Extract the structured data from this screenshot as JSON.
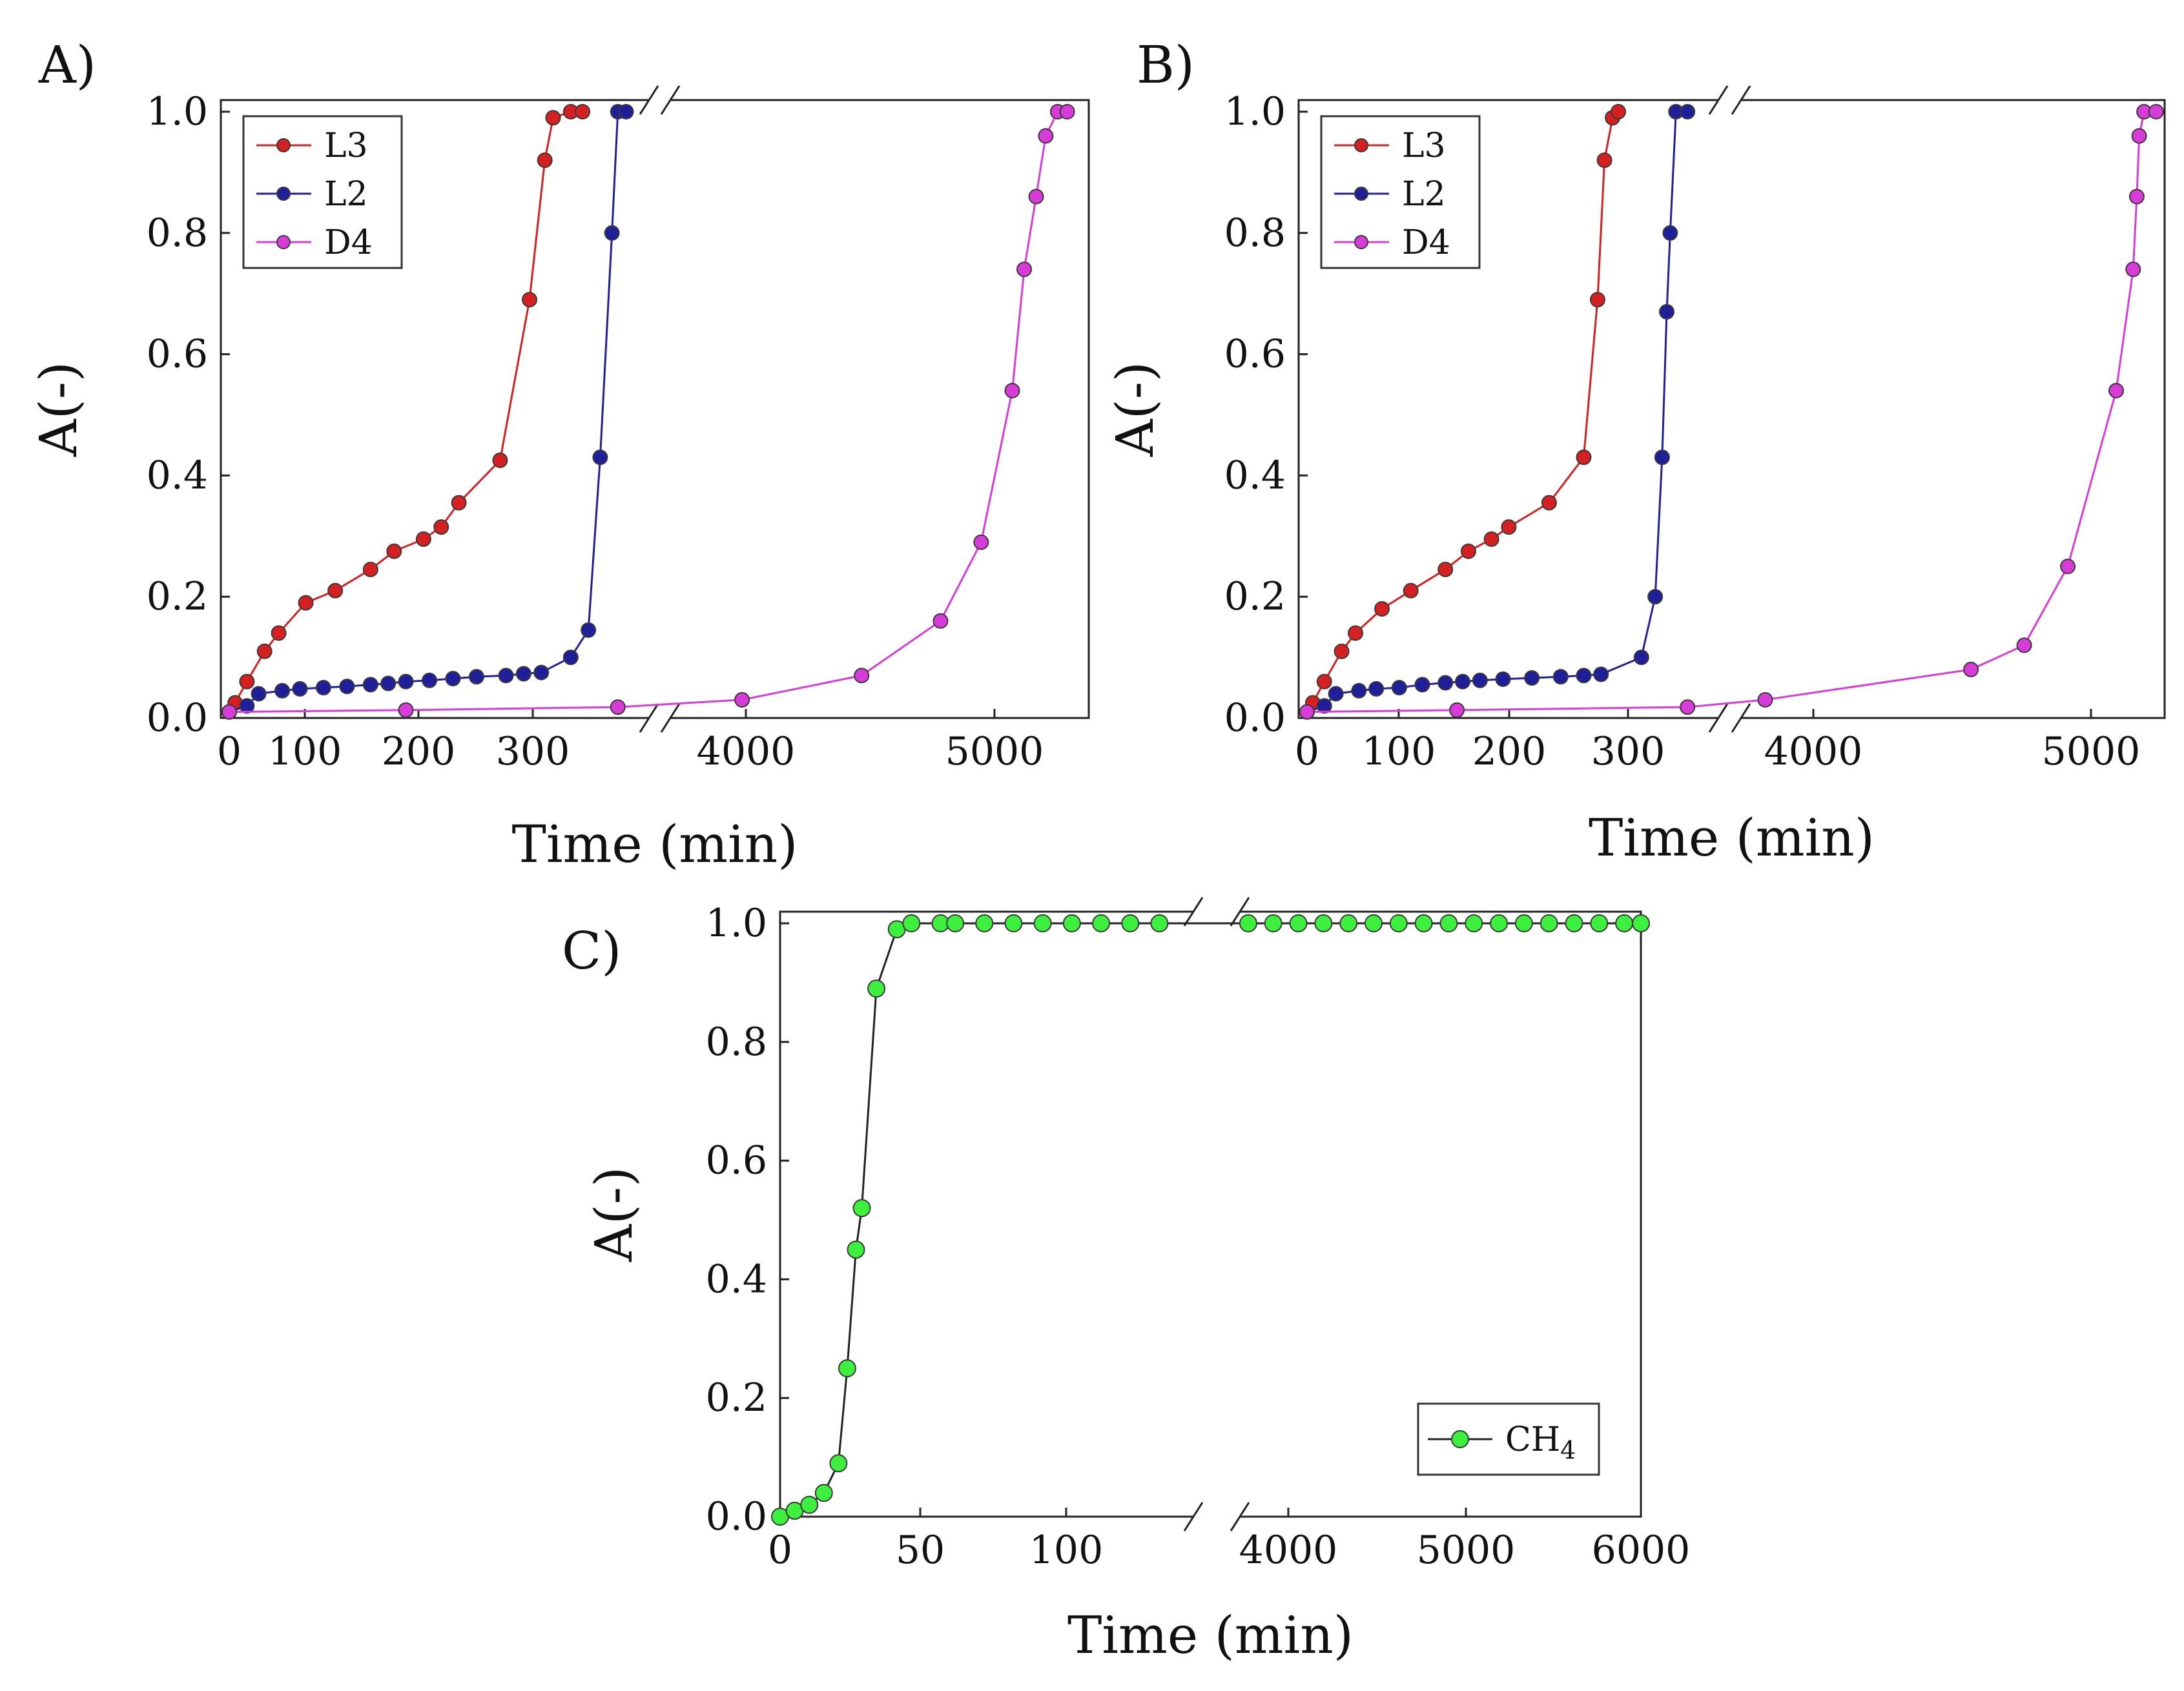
{
  "figure": {
    "panels": [
      "A)",
      "B)",
      "C)"
    ]
  },
  "colors": {
    "L3": "#d42020",
    "L2": "#1f1f9a",
    "D4": "#d83cd8",
    "CH4": "#3ef03e",
    "marker_edge": "#3a3a3a"
  },
  "chart_data": [
    {
      "panel": "A)",
      "type": "line",
      "xlabel": "Time (min)",
      "ylabel": "A(-)",
      "ylim": [
        0,
        1.0
      ],
      "yticks": [
        "0.0",
        "0.2",
        "0.4",
        "0.6",
        "0.8",
        "1.0"
      ],
      "xbreak": {
        "left_range": [
          0,
          340
        ],
        "right_range": [
          3700,
          5450
        ]
      },
      "xticks_left": [
        "0",
        "100",
        "200",
        "300"
      ],
      "xticks_right": [
        "4000",
        "5000"
      ],
      "legend": {
        "location": "top-left",
        "entries": [
          "L3",
          "L2",
          "D4"
        ]
      },
      "series": [
        {
          "name": "L3",
          "x": [
            0,
            5,
            15,
            30,
            42,
            65,
            90,
            120,
            140,
            165,
            180,
            195,
            230,
            255,
            268,
            275,
            290,
            300
          ],
          "y": [
            0.01,
            0.025,
            0.06,
            0.11,
            0.14,
            0.19,
            0.21,
            0.245,
            0.275,
            0.295,
            0.315,
            0.355,
            0.425,
            0.69,
            0.92,
            0.99,
            1.0,
            1.0
          ]
        },
        {
          "name": "L2",
          "x": [
            0,
            15,
            25,
            45,
            60,
            80,
            100,
            120,
            135,
            150,
            170,
            190,
            210,
            235,
            250,
            265,
            290,
            305,
            315,
            325,
            330,
            337
          ],
          "y": [
            0.01,
            0.02,
            0.04,
            0.045,
            0.048,
            0.05,
            0.052,
            0.055,
            0.057,
            0.06,
            0.062,
            0.065,
            0.068,
            0.07,
            0.073,
            0.075,
            0.1,
            0.145,
            0.43,
            0.8,
            1.0,
            1.0
          ]
        },
        {
          "name": "D4",
          "x": [
            0,
            150,
            330,
            4000,
            4500,
            4830,
            5000,
            5130,
            5180,
            5230,
            5270,
            5320,
            5360
          ],
          "y": [
            0.01,
            0.013,
            0.018,
            0.03,
            0.07,
            0.16,
            0.29,
            0.54,
            0.74,
            0.86,
            0.96,
            1.0,
            1.0
          ]
        }
      ]
    },
    {
      "panel": "B)",
      "type": "line",
      "xlabel": "Time (min)",
      "ylabel": "A(-)",
      "ylim": [
        0,
        1.0
      ],
      "yticks": [
        "0.0",
        "0.2",
        "0.4",
        "0.6",
        "0.8",
        "1.0"
      ],
      "xbreak": {
        "left_range": [
          0,
          340
        ],
        "right_range": [
          3550,
          5300
        ]
      },
      "xticks_left": [
        "0",
        "100",
        "200",
        "300"
      ],
      "xticks_right": [
        "4000",
        "5000"
      ],
      "legend": {
        "location": "top-left",
        "entries": [
          "L3",
          "L2",
          "D4"
        ]
      },
      "series": [
        {
          "name": "L3",
          "x": [
            0,
            5,
            15,
            30,
            42,
            65,
            90,
            120,
            140,
            160,
            175,
            210,
            240,
            252,
            258,
            265,
            270
          ],
          "y": [
            0.01,
            0.025,
            0.06,
            0.11,
            0.14,
            0.18,
            0.21,
            0.245,
            0.275,
            0.295,
            0.315,
            0.355,
            0.43,
            0.69,
            0.92,
            0.99,
            1.0
          ]
        },
        {
          "name": "L2",
          "x": [
            0,
            15,
            25,
            45,
            60,
            80,
            100,
            120,
            135,
            150,
            170,
            195,
            220,
            240,
            255,
            290,
            302,
            308,
            312,
            315,
            320,
            330
          ],
          "y": [
            0.01,
            0.02,
            0.04,
            0.045,
            0.048,
            0.05,
            0.055,
            0.058,
            0.06,
            0.062,
            0.064,
            0.066,
            0.068,
            0.07,
            0.072,
            0.1,
            0.2,
            0.43,
            0.67,
            0.8,
            1.0,
            1.0
          ]
        },
        {
          "name": "D4",
          "x": [
            0,
            130,
            330,
            3650,
            4500,
            4720,
            4900,
            5100,
            5170,
            5185,
            5195,
            5215,
            5265
          ],
          "y": [
            0.01,
            0.013,
            0.018,
            0.03,
            0.08,
            0.12,
            0.25,
            0.54,
            0.74,
            0.86,
            0.96,
            1.0,
            1.0
          ]
        }
      ]
    },
    {
      "panel": "C)",
      "type": "line",
      "xlabel": "Time (min)",
      "ylabel": "A(-)",
      "ylim": [
        0,
        1.0
      ],
      "yticks": [
        "0.0",
        "0.2",
        "0.4",
        "0.6",
        "0.8",
        "1.0"
      ],
      "xbreak": {
        "left_range": [
          0,
          135
        ],
        "right_range": [
          3600,
          6000
        ]
      },
      "xticks_left": [
        "0",
        "50",
        "100"
      ],
      "xticks_right": [
        "4000",
        "5000",
        "6000"
      ],
      "legend": {
        "location": "bottom-right",
        "entries": [
          "CH4"
        ]
      },
      "series": [
        {
          "name": "CH4",
          "x": [
            0,
            5,
            10,
            15,
            20,
            23,
            26,
            28,
            33,
            40,
            45,
            55,
            60,
            70,
            80,
            90,
            100,
            110,
            120,
            130,
            3650,
            3800,
            3950,
            4100,
            4250,
            4400,
            4550,
            4700,
            4850,
            5000,
            5150,
            5300,
            5450,
            5600,
            5750,
            5900,
            6000
          ],
          "y": [
            0,
            0.01,
            0.02,
            0.04,
            0.09,
            0.25,
            0.45,
            0.52,
            0.89,
            0.99,
            1.0,
            1.0,
            1.0,
            1.0,
            1.0,
            1.0,
            1.0,
            1.0,
            1.0,
            1.0,
            1.0,
            1.0,
            1.0,
            1.0,
            1.0,
            1.0,
            1.0,
            1.0,
            1.0,
            1.0,
            1.0,
            1.0,
            1.0,
            1.0,
            1.0,
            1.0,
            1.0
          ]
        }
      ]
    }
  ]
}
